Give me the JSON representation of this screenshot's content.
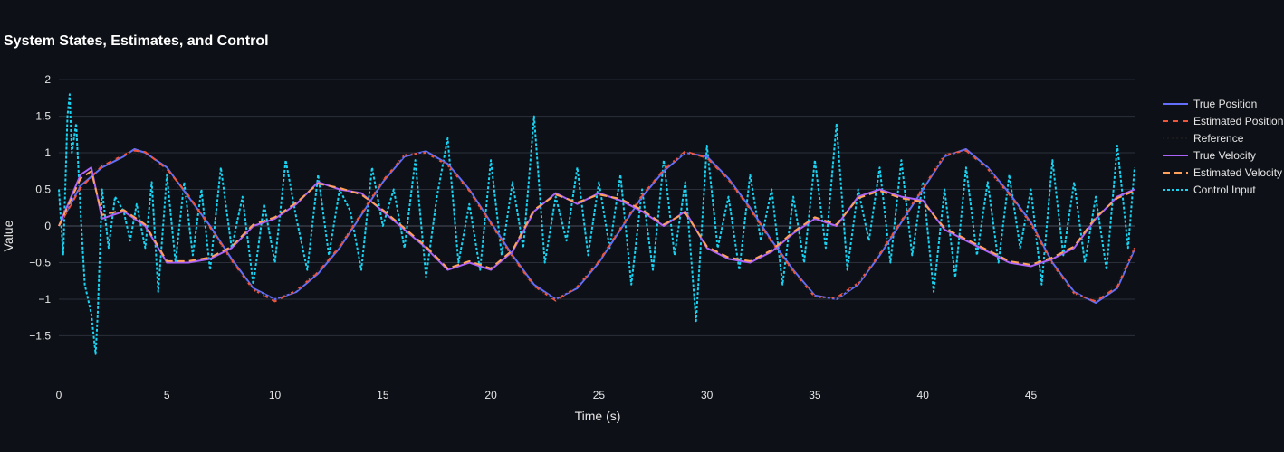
{
  "chart_data": {
    "type": "line",
    "title": "System States, Estimates, and Control",
    "xlabel": "Time (s)",
    "ylabel": "Value",
    "xlim": [
      0,
      49.8
    ],
    "ylim": [
      -2.1,
      2.1
    ],
    "xticks": [
      0,
      5,
      10,
      15,
      20,
      25,
      30,
      35,
      40,
      45
    ],
    "xtick_labels": [
      "0",
      "5",
      "10",
      "15",
      "20",
      "25",
      "30",
      "35",
      "40",
      "45"
    ],
    "yticks": [
      2,
      1.5,
      1,
      0.5,
      0,
      -0.5,
      -1,
      -1.5
    ],
    "ytick_labels": [
      "2",
      "1.5",
      "1",
      "0.5",
      "0",
      "−0.5",
      "−1",
      "−1.5"
    ],
    "grid": true,
    "legend_position": "right",
    "series": [
      {
        "name": "True Position",
        "color": "#636efa",
        "dash": "solid",
        "x": [
          0,
          1,
          2,
          3,
          3.5,
          4,
          5,
          6,
          7,
          8,
          9,
          10,
          11,
          12,
          13,
          14,
          15,
          16,
          17,
          18,
          19,
          20,
          21,
          22,
          23,
          24,
          25,
          26,
          27,
          28,
          29,
          30,
          31,
          32,
          33,
          34,
          35,
          36,
          37,
          38,
          39,
          40,
          41,
          42,
          43,
          44,
          45,
          46,
          47,
          48,
          49,
          49.8
        ],
        "y": [
          0,
          0.55,
          0.8,
          0.95,
          1.05,
          1.0,
          0.8,
          0.4,
          0,
          -0.45,
          -0.85,
          -1.0,
          -0.9,
          -0.65,
          -0.3,
          0.15,
          0.6,
          0.95,
          1.02,
          0.85,
          0.5,
          0.05,
          -0.4,
          -0.8,
          -1.0,
          -0.85,
          -0.5,
          -0.05,
          0.4,
          0.75,
          1.0,
          0.95,
          0.65,
          0.25,
          -0.2,
          -0.6,
          -0.95,
          -1.0,
          -0.8,
          -0.4,
          0.05,
          0.5,
          0.95,
          1.05,
          0.8,
          0.45,
          0.05,
          -0.5,
          -0.9,
          -1.05,
          -0.85,
          -0.32
        ]
      },
      {
        "name": "Estimated Position",
        "color": "#ef553b",
        "dash": "6,5",
        "x": [
          0,
          1,
          2,
          3,
          3.5,
          4,
          5,
          6,
          7,
          8,
          9,
          10,
          11,
          12,
          13,
          14,
          15,
          16,
          17,
          18,
          19,
          20,
          21,
          22,
          23,
          24,
          25,
          26,
          27,
          28,
          29,
          30,
          31,
          32,
          33,
          34,
          35,
          36,
          37,
          38,
          39,
          40,
          41,
          42,
          43,
          44,
          45,
          46,
          47,
          48,
          49,
          49.8
        ],
        "y": [
          0,
          0.52,
          0.82,
          0.97,
          1.03,
          1.01,
          0.78,
          0.42,
          -0.02,
          -0.47,
          -0.87,
          -1.03,
          -0.88,
          -0.63,
          -0.28,
          0.17,
          0.62,
          0.97,
          1.0,
          0.83,
          0.48,
          0.03,
          -0.42,
          -0.82,
          -1.02,
          -0.83,
          -0.48,
          -0.03,
          0.42,
          0.77,
          1.02,
          0.93,
          0.63,
          0.23,
          -0.22,
          -0.62,
          -0.97,
          -0.98,
          -0.78,
          -0.38,
          0.07,
          0.52,
          0.97,
          1.03,
          0.78,
          0.43,
          0.03,
          -0.52,
          -0.92,
          -1.03,
          -0.83,
          -0.3
        ]
      },
      {
        "name": "Reference",
        "color": "#1a1a1a",
        "dash": "2,3",
        "x": [
          0,
          1,
          2,
          3,
          3.5,
          4,
          5,
          6,
          7,
          8,
          9,
          10,
          11,
          12,
          13,
          14,
          15,
          16,
          17,
          18,
          19,
          20,
          21,
          22,
          23,
          24,
          25,
          26,
          27,
          28,
          29,
          30,
          31,
          32,
          33,
          34,
          35,
          36,
          37,
          38,
          39,
          40,
          41,
          42,
          43,
          44,
          45,
          46,
          47,
          48,
          49,
          49.8
        ],
        "y": [
          0,
          0.6,
          0.85,
          0.98,
          1.0,
          0.95,
          0.72,
          0.35,
          -0.05,
          -0.5,
          -0.88,
          -1.0,
          -0.88,
          -0.6,
          -0.25,
          0.2,
          0.65,
          0.97,
          1.0,
          0.82,
          0.45,
          0.0,
          -0.45,
          -0.85,
          -1.0,
          -0.82,
          -0.45,
          0.0,
          0.45,
          0.8,
          1.0,
          0.9,
          0.6,
          0.2,
          -0.25,
          -0.65,
          -0.97,
          -1.0,
          -0.78,
          -0.35,
          0.1,
          0.55,
          0.97,
          1.0,
          0.78,
          0.4,
          0.0,
          -0.55,
          -0.93,
          -1.0,
          -0.8,
          -0.28
        ]
      },
      {
        "name": "True Velocity",
        "color": "#ab63fa",
        "dash": "solid",
        "x": [
          0,
          1,
          1.5,
          2,
          3,
          4,
          5,
          6,
          7,
          8,
          9,
          10,
          11,
          12,
          13,
          14,
          15,
          16,
          17,
          18,
          19,
          20,
          21,
          22,
          23,
          24,
          25,
          26,
          27,
          28,
          29,
          30,
          31,
          32,
          33,
          34,
          35,
          36,
          37,
          38,
          39,
          40,
          41,
          42,
          43,
          44,
          45,
          46,
          47,
          48,
          49,
          49.8
        ],
        "y": [
          0,
          0.7,
          0.8,
          0.1,
          0.2,
          0.0,
          -0.5,
          -0.5,
          -0.45,
          -0.3,
          0.0,
          0.1,
          0.3,
          0.6,
          0.5,
          0.45,
          0.2,
          -0.05,
          -0.3,
          -0.6,
          -0.5,
          -0.6,
          -0.35,
          0.2,
          0.45,
          0.3,
          0.45,
          0.35,
          0.2,
          0.0,
          0.2,
          -0.3,
          -0.45,
          -0.5,
          -0.35,
          -0.1,
          0.1,
          0.0,
          0.4,
          0.5,
          0.4,
          0.35,
          -0.05,
          -0.2,
          -0.35,
          -0.5,
          -0.55,
          -0.45,
          -0.3,
          0.1,
          0.4,
          0.5
        ]
      },
      {
        "name": "Estimated Velocity",
        "color": "#ffa15a",
        "dash": "8,5",
        "x": [
          0,
          1,
          1.5,
          2,
          3,
          4,
          5,
          6,
          7,
          8,
          9,
          10,
          11,
          12,
          13,
          14,
          15,
          16,
          17,
          18,
          19,
          20,
          21,
          22,
          23,
          24,
          25,
          26,
          27,
          28,
          29,
          30,
          31,
          32,
          33,
          34,
          35,
          36,
          37,
          38,
          39,
          40,
          41,
          42,
          43,
          44,
          45,
          46,
          47,
          48,
          49,
          49.8
        ],
        "y": [
          0,
          0.65,
          0.75,
          0.15,
          0.22,
          0.02,
          -0.48,
          -0.48,
          -0.43,
          -0.28,
          0.02,
          0.12,
          0.32,
          0.58,
          0.52,
          0.43,
          0.22,
          -0.03,
          -0.28,
          -0.58,
          -0.48,
          -0.58,
          -0.33,
          0.22,
          0.43,
          0.32,
          0.43,
          0.37,
          0.22,
          0.02,
          0.18,
          -0.28,
          -0.43,
          -0.48,
          -0.33,
          -0.08,
          0.12,
          0.02,
          0.38,
          0.48,
          0.38,
          0.33,
          -0.03,
          -0.18,
          -0.33,
          -0.48,
          -0.53,
          -0.43,
          -0.28,
          0.12,
          0.38,
          0.48
        ]
      },
      {
        "name": "Control Input",
        "color": "#19d3f3",
        "dash": "3,2",
        "x": [
          0,
          0.2,
          0.4,
          0.5,
          0.6,
          0.8,
          1.0,
          1.2,
          1.5,
          1.7,
          1.8,
          2.0,
          2.3,
          2.6,
          3.0,
          3.3,
          3.6,
          4.0,
          4.3,
          4.6,
          5.0,
          5.4,
          5.8,
          6.2,
          6.6,
          7.0,
          7.5,
          8.0,
          8.5,
          9.0,
          9.5,
          10.0,
          10.5,
          11.0,
          11.5,
          12.0,
          12.5,
          13.0,
          13.5,
          14.0,
          14.5,
          15.0,
          15.5,
          16.0,
          16.5,
          17.0,
          17.5,
          18.0,
          18.5,
          19.0,
          19.5,
          20.0,
          20.5,
          21.0,
          21.5,
          22.0,
          22.5,
          23.0,
          23.5,
          24.0,
          24.5,
          25.0,
          25.5,
          26.0,
          26.5,
          27.0,
          27.5,
          28.0,
          28.5,
          29.0,
          29.5,
          30.0,
          30.5,
          31.0,
          31.5,
          32.0,
          32.5,
          33.0,
          33.5,
          34.0,
          34.5,
          35.0,
          35.5,
          36.0,
          36.5,
          37.0,
          37.5,
          38.0,
          38.5,
          39.0,
          39.5,
          40.0,
          40.5,
          41.0,
          41.5,
          42.0,
          42.5,
          43.0,
          43.5,
          44.0,
          44.5,
          45.0,
          45.5,
          46.0,
          46.5,
          47.0,
          47.5,
          48.0,
          48.5,
          49.0,
          49.5,
          49.8
        ],
        "y": [
          0.5,
          -0.4,
          1.5,
          1.8,
          1.0,
          1.4,
          0.2,
          -0.8,
          -1.2,
          -1.75,
          -1.2,
          0.5,
          -0.3,
          0.4,
          0.2,
          -0.2,
          0.3,
          -0.3,
          0.6,
          -0.9,
          0.7,
          -0.5,
          0.6,
          -0.4,
          0.5,
          -0.6,
          0.8,
          -0.3,
          0.4,
          -0.8,
          0.3,
          -0.5,
          0.9,
          0.1,
          -0.6,
          0.7,
          -0.4,
          0.5,
          0.2,
          -0.6,
          0.8,
          0.0,
          0.5,
          -0.3,
          0.9,
          -0.7,
          0.4,
          1.2,
          -0.5,
          0.3,
          -0.6,
          0.9,
          -0.4,
          0.6,
          -0.3,
          1.5,
          -0.5,
          0.4,
          -0.2,
          0.8,
          -0.4,
          0.6,
          -0.3,
          0.7,
          -0.8,
          0.5,
          -0.6,
          0.9,
          -0.4,
          0.6,
          -1.3,
          1.1,
          -0.3,
          0.4,
          -0.6,
          0.7,
          -0.2,
          0.5,
          -0.8,
          0.4,
          -0.5,
          0.9,
          -0.3,
          1.4,
          -0.6,
          0.5,
          -0.2,
          0.8,
          -0.5,
          0.9,
          -0.4,
          0.6,
          -0.9,
          0.5,
          -0.7,
          0.8,
          -0.4,
          0.6,
          -0.5,
          0.7,
          -0.3,
          0.5,
          -0.8,
          0.9,
          -0.4,
          0.6,
          -0.5,
          0.4,
          -0.6,
          1.1,
          -0.3,
          0.8
        ]
      }
    ]
  }
}
